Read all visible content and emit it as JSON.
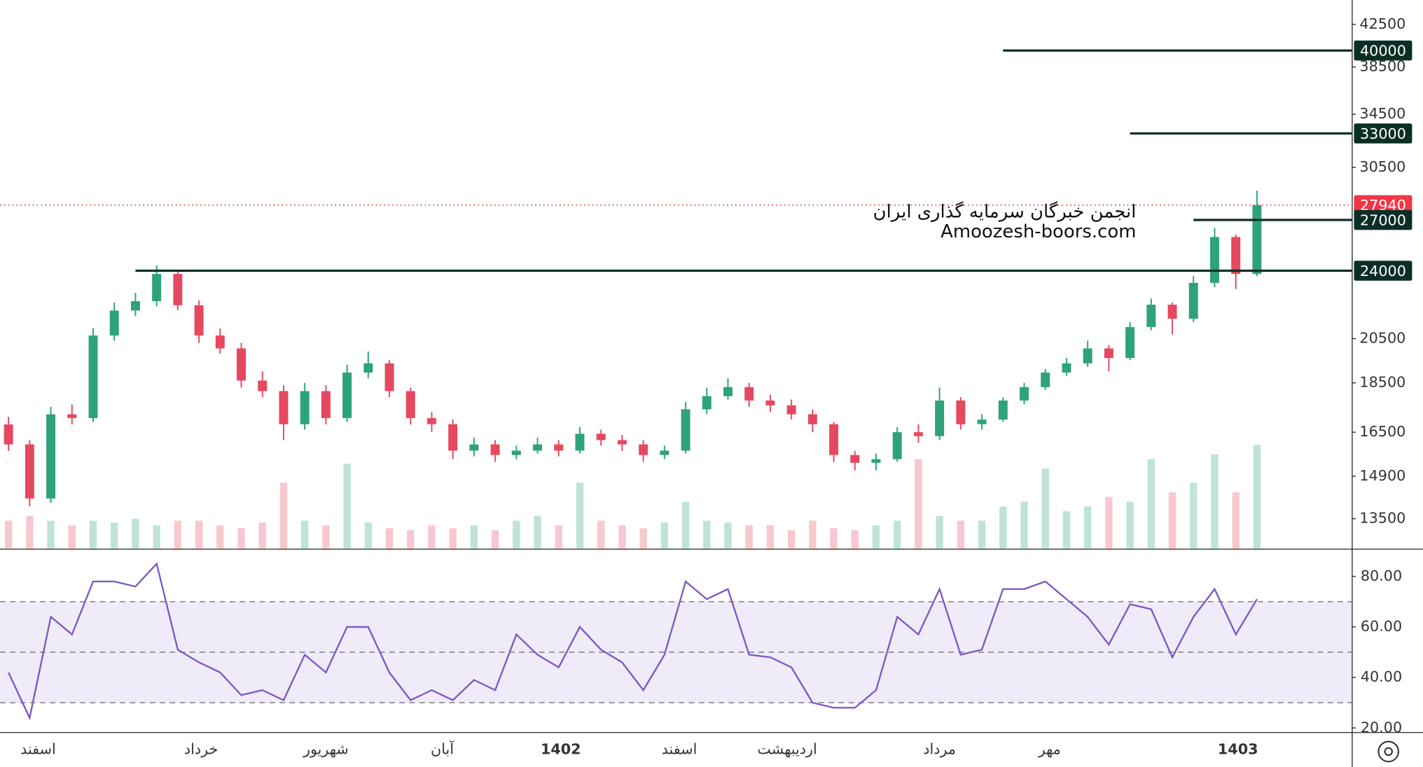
{
  "chart_data": [
    {
      "type": "candlestick",
      "log_scale": true,
      "ylim": [
        12580,
        44970
      ],
      "yticks": [
        13500,
        14900,
        16500,
        18500,
        20500,
        30500,
        34500,
        38500,
        42500
      ],
      "xlim": [
        -0.4,
        63.5
      ],
      "xticks": [
        {
          "value": 1.4,
          "label": "اسفند"
        },
        {
          "value": 9.1,
          "label": "خرداد"
        },
        {
          "value": 15,
          "label": "شهریور"
        },
        {
          "value": 20.5,
          "label": "آبان"
        },
        {
          "value": 26.1,
          "label": "1402"
        },
        {
          "value": 31.7,
          "label": "اسفند"
        },
        {
          "value": 36.8,
          "label": "اردیبهشت"
        },
        {
          "value": 44,
          "label": "مرداد"
        },
        {
          "value": 49.2,
          "label": "مهر"
        },
        {
          "value": 58.1,
          "label": "1403"
        }
      ],
      "up_color": "#2ea27c",
      "down_color": "#e5485f",
      "open": [
        16800,
        16040,
        14150,
        17200,
        17050,
        20650,
        21880,
        22360,
        23820,
        22150,
        20650,
        20040,
        18600,
        18150,
        16810,
        18150,
        17050,
        18950,
        19360,
        18150,
        17050,
        16810,
        15810,
        16040,
        15650,
        15810,
        16040,
        15810,
        16440,
        16200,
        16040,
        15650,
        15810,
        17400,
        17940,
        18320,
        17760,
        17560,
        17200,
        16810,
        15650,
        15370,
        15500,
        16500,
        16350,
        17760,
        16810,
        16990,
        17760,
        18320,
        18950,
        19360,
        20040,
        19600,
        21060,
        22180,
        21470,
        23330,
        25950,
        23820
      ],
      "high": [
        17100,
        16200,
        17500,
        17600,
        21000,
        22300,
        22800,
        24300,
        24000,
        22400,
        21000,
        20300,
        19000,
        18400,
        18500,
        18400,
        19300,
        19900,
        19500,
        18300,
        17300,
        17000,
        16300,
        16200,
        16000,
        16300,
        16200,
        16700,
        16600,
        16400,
        16200,
        16000,
        17700,
        18300,
        18700,
        18500,
        18000,
        17800,
        17400,
        16900,
        15800,
        15700,
        16700,
        16800,
        18300,
        17900,
        17200,
        17900,
        18500,
        19100,
        19600,
        20400,
        20200,
        21300,
        22500,
        22300,
        23700,
        26500,
        26100,
        28900
      ],
      "low": [
        15800,
        13900,
        14000,
        16800,
        16900,
        20400,
        21600,
        22100,
        21900,
        20300,
        19800,
        18300,
        17900,
        16200,
        16600,
        16800,
        16900,
        18700,
        17900,
        16800,
        16500,
        15500,
        15600,
        15400,
        15500,
        15700,
        15600,
        15700,
        16000,
        15800,
        15400,
        15500,
        15700,
        17200,
        17800,
        17500,
        17300,
        17000,
        16500,
        15400,
        15100,
        15100,
        15400,
        16100,
        16200,
        16600,
        16600,
        16900,
        17600,
        18200,
        18800,
        19200,
        19000,
        19500,
        20900,
        20700,
        21300,
        23100,
        23000,
        23700
      ],
      "close": [
        16040,
        14150,
        17200,
        17050,
        20650,
        21880,
        22360,
        23820,
        22150,
        20650,
        20040,
        18600,
        18150,
        16810,
        18150,
        17050,
        18950,
        19360,
        18150,
        17050,
        16810,
        15810,
        16040,
        15650,
        15810,
        16040,
        15810,
        16440,
        16200,
        16040,
        15650,
        15810,
        17400,
        17940,
        18320,
        17760,
        17560,
        17200,
        16810,
        15650,
        15370,
        15500,
        16500,
        16350,
        17760,
        16810,
        16990,
        17760,
        18320,
        18950,
        19360,
        20040,
        19600,
        21060,
        22180,
        21470,
        23330,
        25950,
        23820,
        27940
      ],
      "volume": [
        30,
        35,
        30,
        25,
        30,
        28,
        32,
        25,
        30,
        30,
        25,
        22,
        28,
        70,
        30,
        25,
        90,
        28,
        22,
        20,
        25,
        22,
        25,
        20,
        30,
        35,
        25,
        70,
        30,
        25,
        22,
        28,
        50,
        30,
        28,
        25,
        25,
        20,
        30,
        22,
        20,
        25,
        30,
        95,
        35,
        30,
        30,
        45,
        50,
        85,
        40,
        45,
        55,
        50,
        95,
        60,
        70,
        100,
        60,
        110
      ],
      "levels": [
        {
          "value": 40000,
          "from": 47
        },
        {
          "value": 33000,
          "from": 53
        },
        {
          "value": 27000,
          "from": 56
        },
        {
          "value": 24000,
          "from": 6
        }
      ],
      "level_color": "#0b2f27",
      "last_color": "#f23645",
      "annotations": [
        "انجمن خبرگان سرمایه گذاری ایران",
        "Amoozesh-boors.com"
      ]
    },
    {
      "type": "line",
      "color": "#7e57c2",
      "ylim": [
        18.2,
        90.8
      ],
      "yticks": [
        {
          "value": 20,
          "label": "20.00"
        },
        {
          "value": 40,
          "label": "40.00"
        },
        {
          "value": 60,
          "label": "60.00"
        },
        {
          "value": 80,
          "label": "80.00"
        }
      ],
      "levels": [
        70,
        50,
        30
      ],
      "values": [
        42,
        24,
        64,
        57,
        78,
        78,
        76,
        85,
        51,
        46,
        42,
        33,
        35,
        31,
        49,
        42,
        60,
        60,
        42,
        31,
        35,
        31,
        39,
        35,
        57,
        49,
        44,
        60,
        51,
        46,
        35,
        49,
        78,
        71,
        75,
        49,
        48,
        44,
        30,
        28,
        28,
        35,
        64,
        57,
        75,
        49,
        51,
        75,
        75,
        78,
        71,
        64,
        53,
        69,
        67,
        48,
        64,
        75,
        57,
        71
      ]
    }
  ]
}
